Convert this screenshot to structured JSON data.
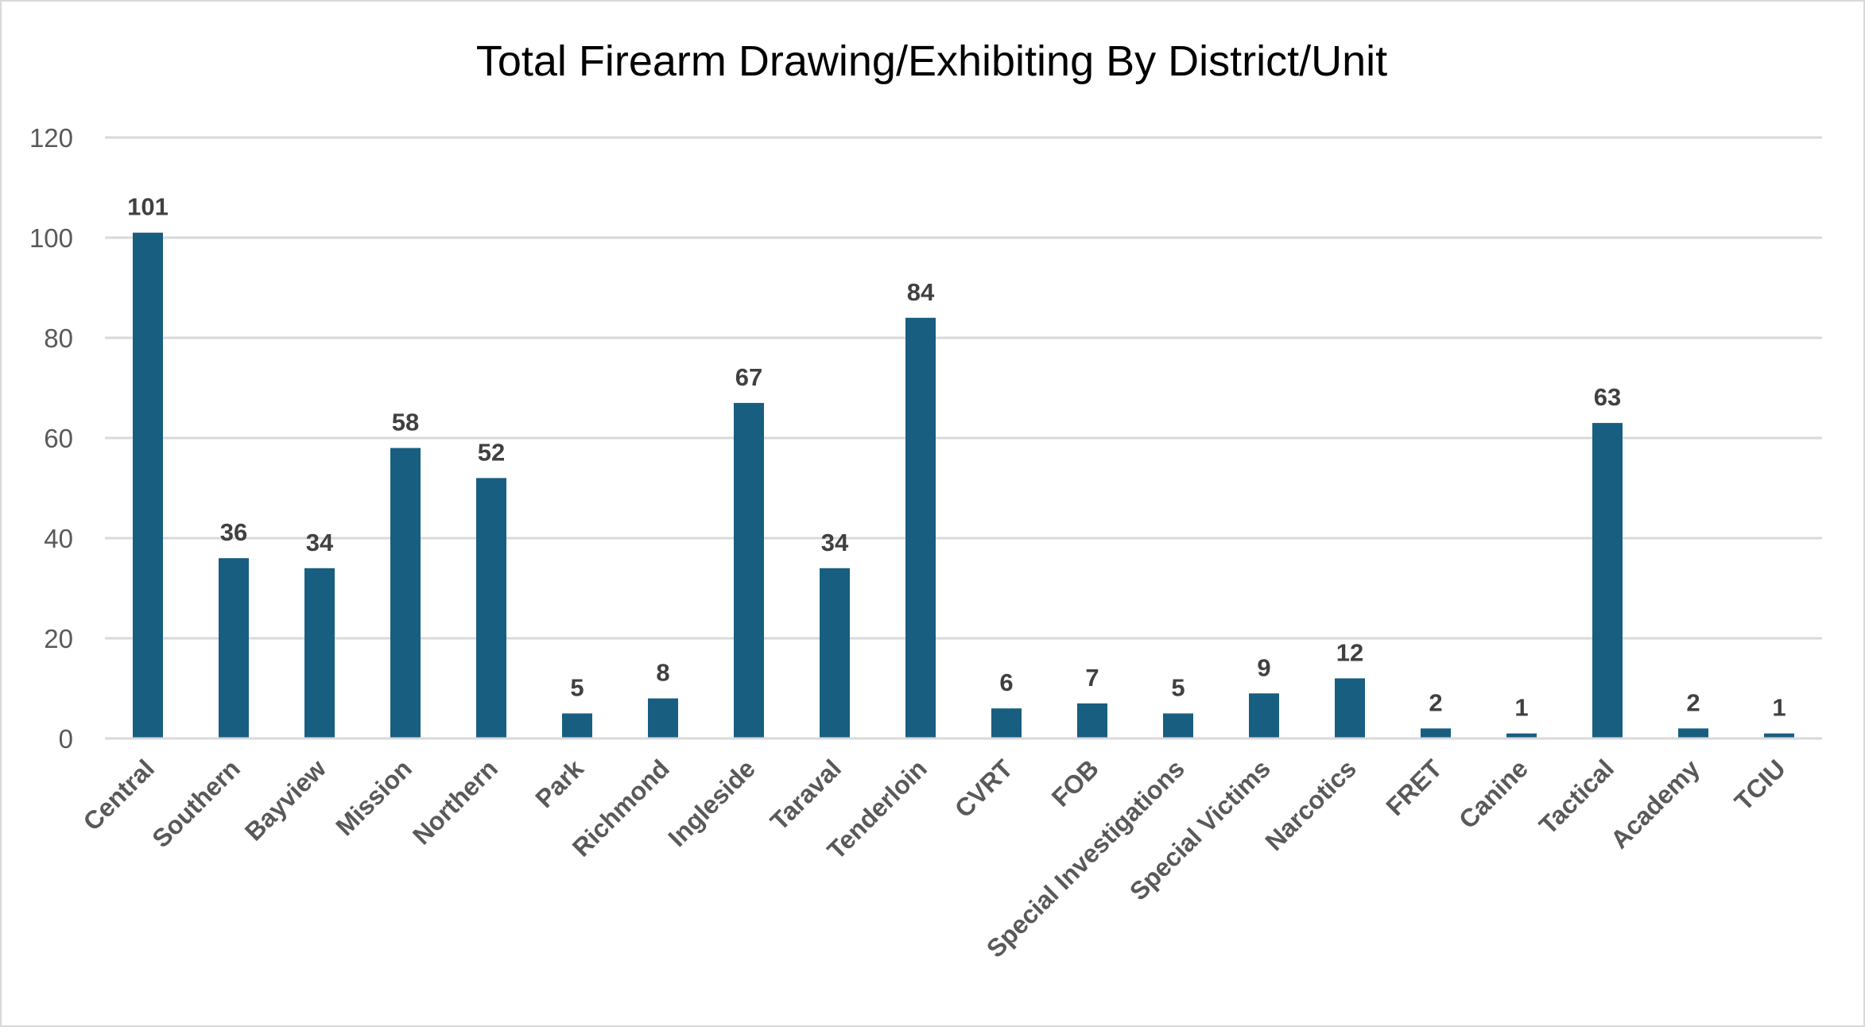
{
  "chart_data": {
    "type": "bar",
    "title": "Total Firearm Drawing/Exhibiting By District/Unit",
    "xlabel": "",
    "ylabel": "",
    "ylim": [
      0,
      120
    ],
    "yticks": [
      "0",
      "20",
      "40",
      "60",
      "80",
      "100",
      "120"
    ],
    "grid": true,
    "legend": "none",
    "bar_color": "#185e80",
    "categories": [
      "Central",
      "Southern",
      "Bayview",
      "Mission",
      "Northern",
      "Park",
      "Richmond",
      "Ingleside",
      "Taraval",
      "Tenderloin",
      "CVRT",
      "FOB",
      "Special Investigations",
      "Special Victims",
      "Narcotics",
      "FRET",
      "Canine",
      "Tactical",
      "Academy",
      "TCIU"
    ],
    "values": [
      101,
      36,
      34,
      58,
      52,
      5,
      8,
      67,
      34,
      84,
      6,
      7,
      5,
      9,
      12,
      2,
      1,
      63,
      2,
      1
    ],
    "data_labels": [
      "101",
      "36",
      "34",
      "58",
      "52",
      "5",
      "8",
      "67",
      "34",
      "84",
      "6",
      "7",
      "5",
      "9",
      "12",
      "2",
      "1",
      "63",
      "2",
      "1"
    ]
  }
}
